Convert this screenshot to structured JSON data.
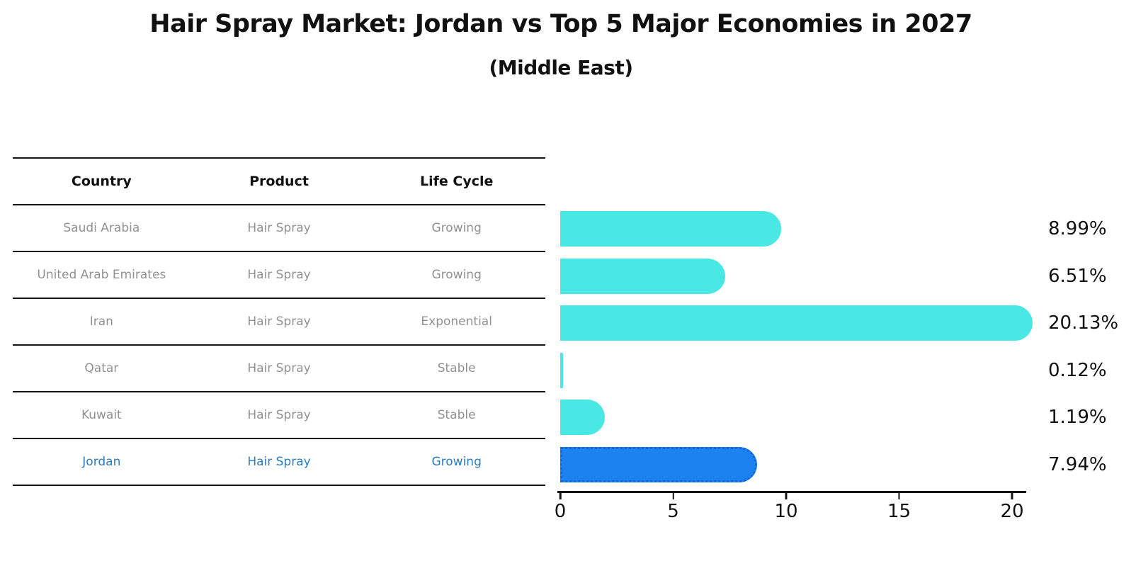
{
  "header": {
    "title": "Hair Spray Market: Jordan vs Top 5 Major Economies in 2027",
    "subtitle": "(Middle East)"
  },
  "table": {
    "columns": [
      "Country",
      "Product",
      "Life Cycle"
    ],
    "rows": [
      {
        "country": "Saudi Arabia",
        "product": "Hair Spray",
        "life_cycle": "Growing"
      },
      {
        "country": "United Arab Emirates",
        "product": "Hair Spray",
        "life_cycle": "Growing"
      },
      {
        "country": "Iran",
        "product": "Hair Spray",
        "life_cycle": "Exponential"
      },
      {
        "country": "Qatar",
        "product": "Hair Spray",
        "life_cycle": "Stable"
      },
      {
        "country": "Kuwait",
        "product": "Hair Spray",
        "life_cycle": "Stable"
      },
      {
        "country": "Jordan",
        "product": "Hair Spray",
        "life_cycle": "Growing"
      }
    ],
    "highlight_index": 5
  },
  "chart_data": {
    "type": "bar",
    "orientation": "horizontal",
    "title": "Hair Spray Market: Jordan vs Top 5 Major Economies in 2027",
    "subtitle": "(Middle East)",
    "categories": [
      "Saudi Arabia",
      "United Arab Emirates",
      "Iran",
      "Qatar",
      "Kuwait",
      "Jordan"
    ],
    "values": [
      8.99,
      6.51,
      20.13,
      0.12,
      1.19,
      7.94
    ],
    "value_labels": [
      "8.99%",
      "6.51%",
      "20.13%",
      "0.12%",
      "1.19%",
      "7.94%"
    ],
    "unit": "percent",
    "x_ticks": [
      0,
      5,
      10,
      15,
      20
    ],
    "xlim": [
      0,
      21
    ],
    "highlight_index": 5,
    "grid": false,
    "legend": false
  },
  "colors": {
    "bar": "#49E8E4",
    "highlight_bar": "#1B82F0",
    "highlight_border": "#1465D8",
    "highlight_text": "#2E7CBC",
    "table_text": "#919191",
    "text": "#111111",
    "line": "#141414"
  }
}
